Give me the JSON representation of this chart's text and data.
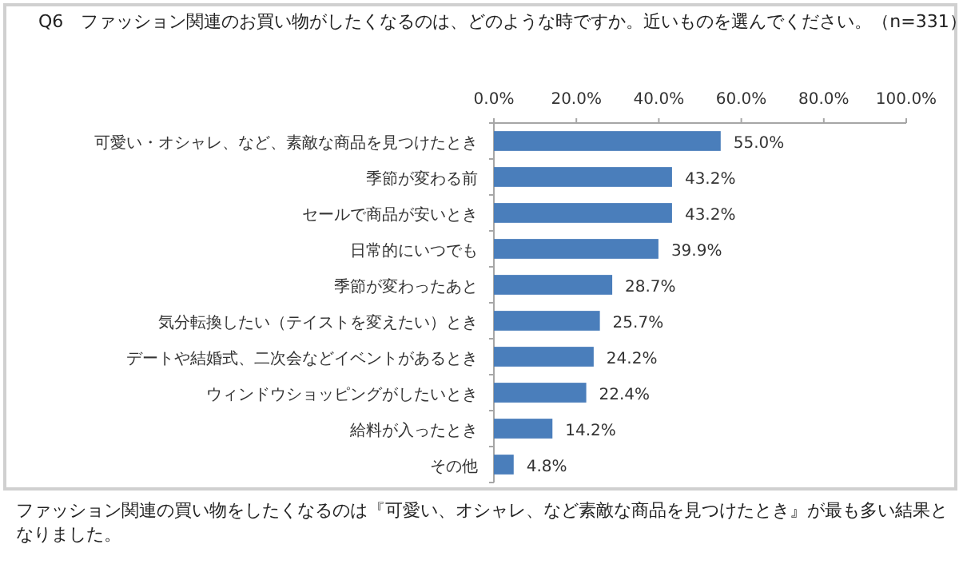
{
  "chart_data": {
    "type": "bar",
    "orientation": "horizontal",
    "title": "Q6　ファッション関連のお買い物がしたくなるのは、どのような時ですか。近いものを選んでください。（n=331）",
    "categories": [
      "可愛い・オシャレ、など、素敵な商品を見つけたとき",
      "季節が変わる前",
      "セールで商品が安いとき",
      "日常的にいつでも",
      "季節が変わったあと",
      "気分転換したい（テイストを変えたい）とき",
      "デートや結婚式、二次会などイベントがあるとき",
      "ウィンドウショッピングがしたいとき",
      "給料が入ったとき",
      "その他"
    ],
    "values": [
      55.0,
      43.2,
      43.2,
      39.9,
      28.7,
      25.7,
      24.2,
      22.4,
      14.2,
      4.8
    ],
    "value_labels": [
      "55.0%",
      "43.2%",
      "43.2%",
      "39.9%",
      "28.7%",
      "25.7%",
      "24.2%",
      "22.4%",
      "14.2%",
      "4.8%"
    ],
    "color": "#4a7ebb",
    "xlim": [
      0,
      100
    ],
    "xticks": [
      {
        "value": 0,
        "label": "0.0%"
      },
      {
        "value": 20,
        "label": "20.0%"
      },
      {
        "value": 40,
        "label": "40.0%"
      },
      {
        "value": 60,
        "label": "60.0%"
      },
      {
        "value": 80,
        "label": "80.0%"
      },
      {
        "value": 100,
        "label": "100.0%"
      }
    ],
    "annotations": [
      "ファッション関連の買い物をしたくなるのは『可愛い、オシャレ、など素敵な商品を見つけたとき』が最も多い結果となりました。"
    ]
  }
}
